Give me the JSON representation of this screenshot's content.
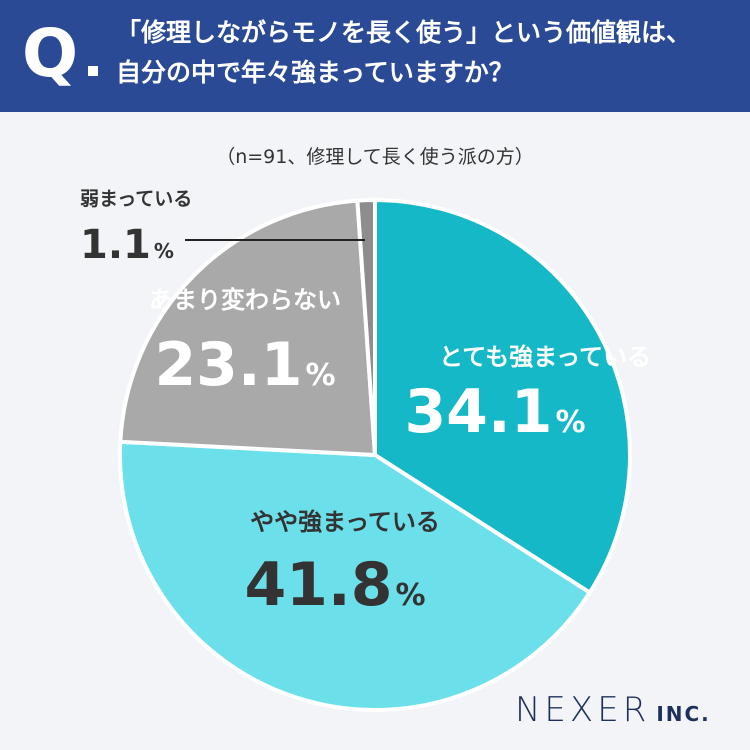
{
  "question": {
    "mark": "Q",
    "line1": "「修理しながらモノを長く使う」という価値観は、",
    "line2": "自分の中で年々強まっていますか？"
  },
  "note": "（n=91、修理して長く使う派の方）",
  "chart_data": {
    "type": "pie",
    "title": "",
    "slices": [
      {
        "label": "とても強まっている",
        "value": 34.1,
        "color": "#15b8c6"
      },
      {
        "label": "やや強まっている",
        "value": 41.8,
        "color": "#6ce0ea"
      },
      {
        "label": "あまり変わらない",
        "value": 23.1,
        "color": "#a9a9a9"
      },
      {
        "label": "弱まっている",
        "value": 1.1,
        "color": "#8d8d8d"
      }
    ],
    "unit": "%",
    "start": "top",
    "direction": "clockwise"
  },
  "brand": {
    "main": "NEXER",
    "sub": "INC."
  }
}
